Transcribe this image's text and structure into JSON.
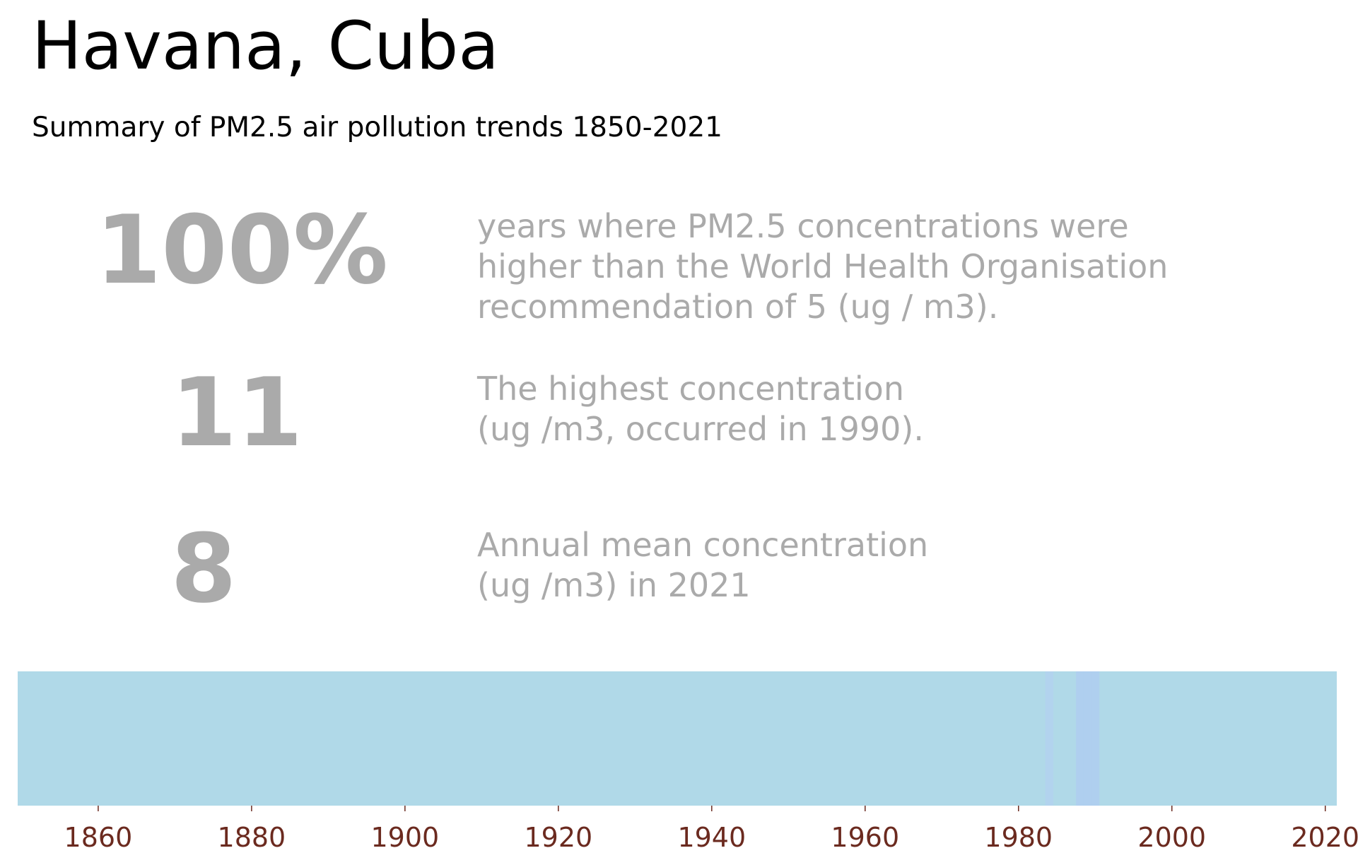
{
  "header": {
    "title": "Havana, Cuba",
    "subtitle": "Summary of PM2.5 air pollution trends 1850-2021"
  },
  "stats": [
    {
      "value": "100%",
      "lines": [
        "years where PM2.5 concentrations were",
        "higher than the World Health Organisation",
        "recommendation of 5 (ug / m3)."
      ]
    },
    {
      "value": "11",
      "lines": [
        "The highest concentration",
        "(ug /m3, occurred in 1990)."
      ]
    },
    {
      "value": "8",
      "lines": [
        "Annual mean concentration",
        "(ug /m3) in 2021"
      ]
    }
  ],
  "colors": {
    "stat_text": "#aaaaaa",
    "tick_label": "#6b2a1f",
    "stripe_base": "#b0d9e8"
  },
  "chart_data": {
    "type": "heatmap",
    "x_range": [
      1850,
      2021
    ],
    "x_ticks": [
      1860,
      1880,
      1900,
      1920,
      1940,
      1960,
      1980,
      2000,
      2020
    ],
    "base_color": "#b0d9e8",
    "highlighted_years": [
      {
        "year": 1984,
        "color": "#b2d3ee"
      },
      {
        "year": 1988,
        "color": "#afcfef"
      },
      {
        "year": 1989,
        "color": "#afcfef"
      },
      {
        "year": 1990,
        "color": "#afcfef"
      }
    ],
    "grid": false
  }
}
